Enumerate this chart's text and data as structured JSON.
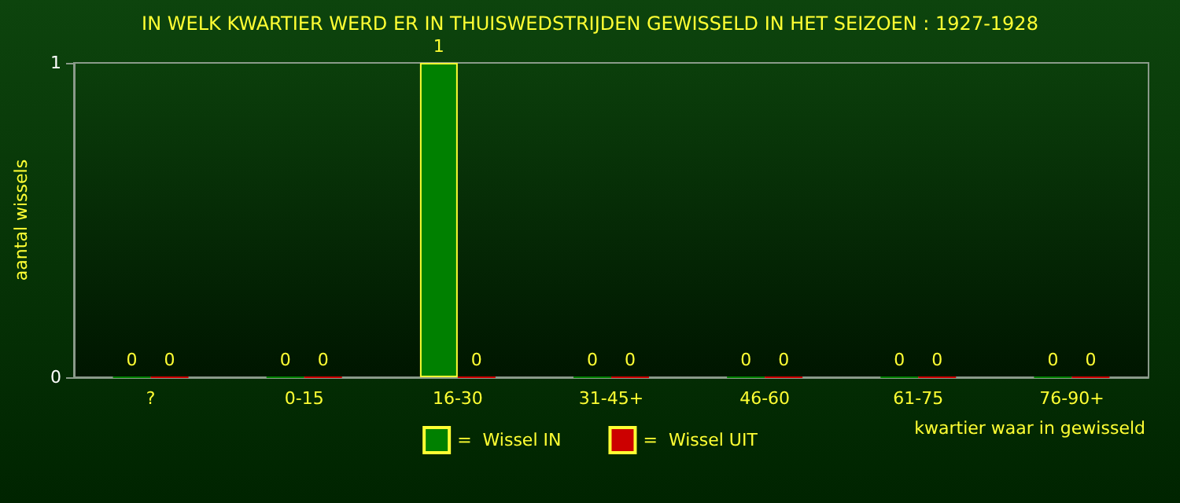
{
  "chart_data": {
    "type": "bar",
    "title": "IN WELK KWARTIER WERD ER IN THUISWEDSTRIJDEN GEWISSELD IN HET SEIZOEN : 1927-1928",
    "xlabel": "kwartier waar in gewisseld",
    "ylabel": "aantal wissels",
    "categories": [
      "?",
      "0-15",
      "16-30",
      "31-45+",
      "46-60",
      "61-75",
      "76-90+"
    ],
    "series": [
      {
        "name": "=  Wissel IN",
        "color": "#008000",
        "values": [
          0,
          0,
          1,
          0,
          0,
          0,
          0
        ]
      },
      {
        "name": "=  Wissel UIT",
        "color": "#cc0000",
        "values": [
          0,
          0,
          0,
          0,
          0,
          0,
          0
        ]
      }
    ],
    "ylim": [
      0,
      1
    ],
    "yticks": [
      0,
      1
    ],
    "grid": false,
    "legend": "bottom",
    "data_labels": true
  }
}
